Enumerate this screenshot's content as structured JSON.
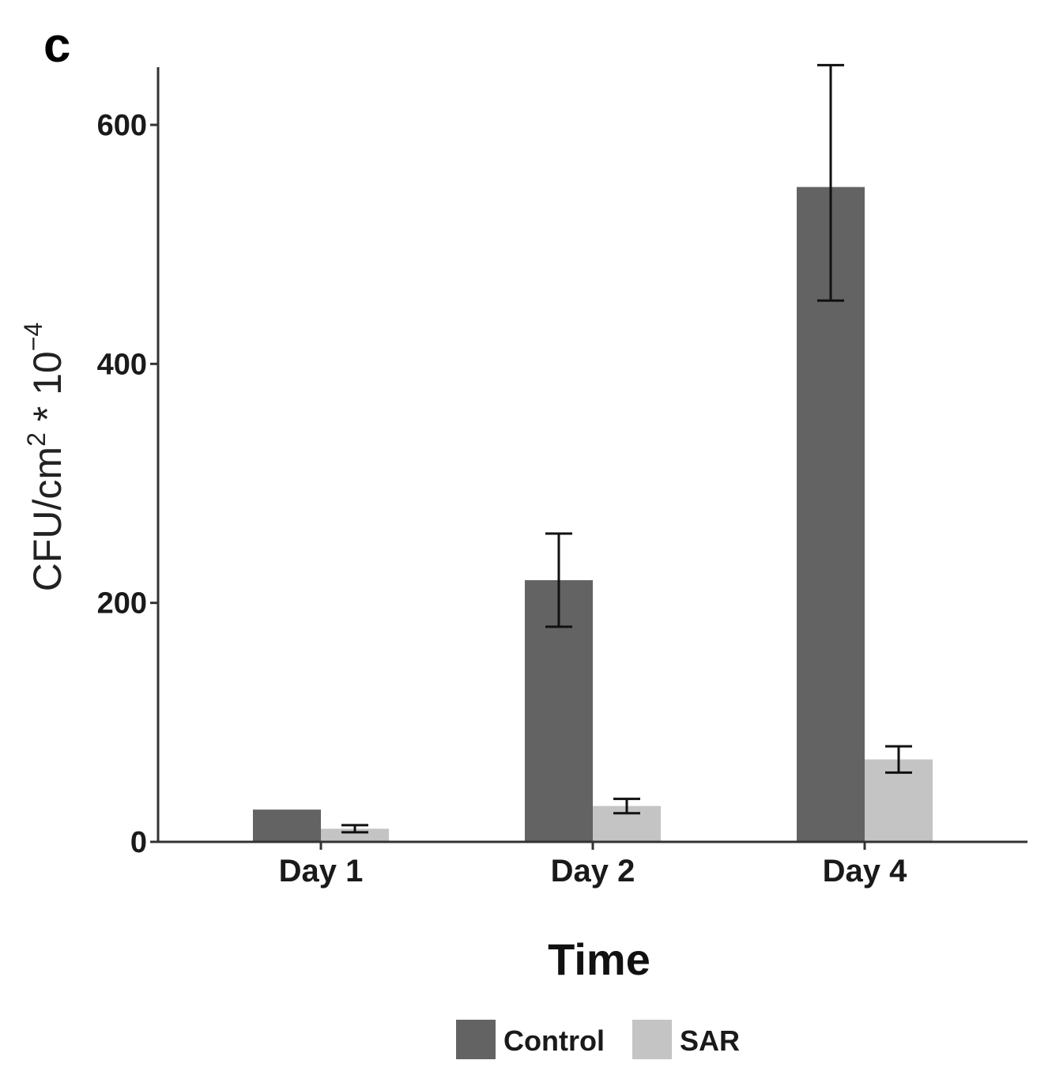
{
  "panel_label": "c",
  "colors": {
    "control": "#636363",
    "sar": "#c4c4c4",
    "axis": "#333333",
    "error_bar": "#111111"
  },
  "chart_data": {
    "type": "bar",
    "title": "",
    "xlabel": "Time",
    "ylabel_parts": {
      "base": "CFU/cm",
      "sup1": "2",
      "mid": " * 10",
      "sup2": "−4"
    },
    "categories": [
      "Day 1",
      "Day 2",
      "Day 4"
    ],
    "series": [
      {
        "name": "Control",
        "color": "#636363",
        "values": [
          27,
          219,
          548
        ],
        "error_low": [
          27,
          180,
          453
        ],
        "error_high": [
          27,
          258,
          650
        ]
      },
      {
        "name": "SAR",
        "color": "#c4c4c4",
        "values": [
          11,
          30,
          69
        ],
        "error_low": [
          8,
          24,
          58
        ],
        "error_high": [
          14,
          36,
          80
        ]
      }
    ],
    "y_ticks": [
      0,
      200,
      400,
      600
    ],
    "ylim": [
      0,
      650
    ],
    "grid": false,
    "legend_position": "bottom"
  }
}
